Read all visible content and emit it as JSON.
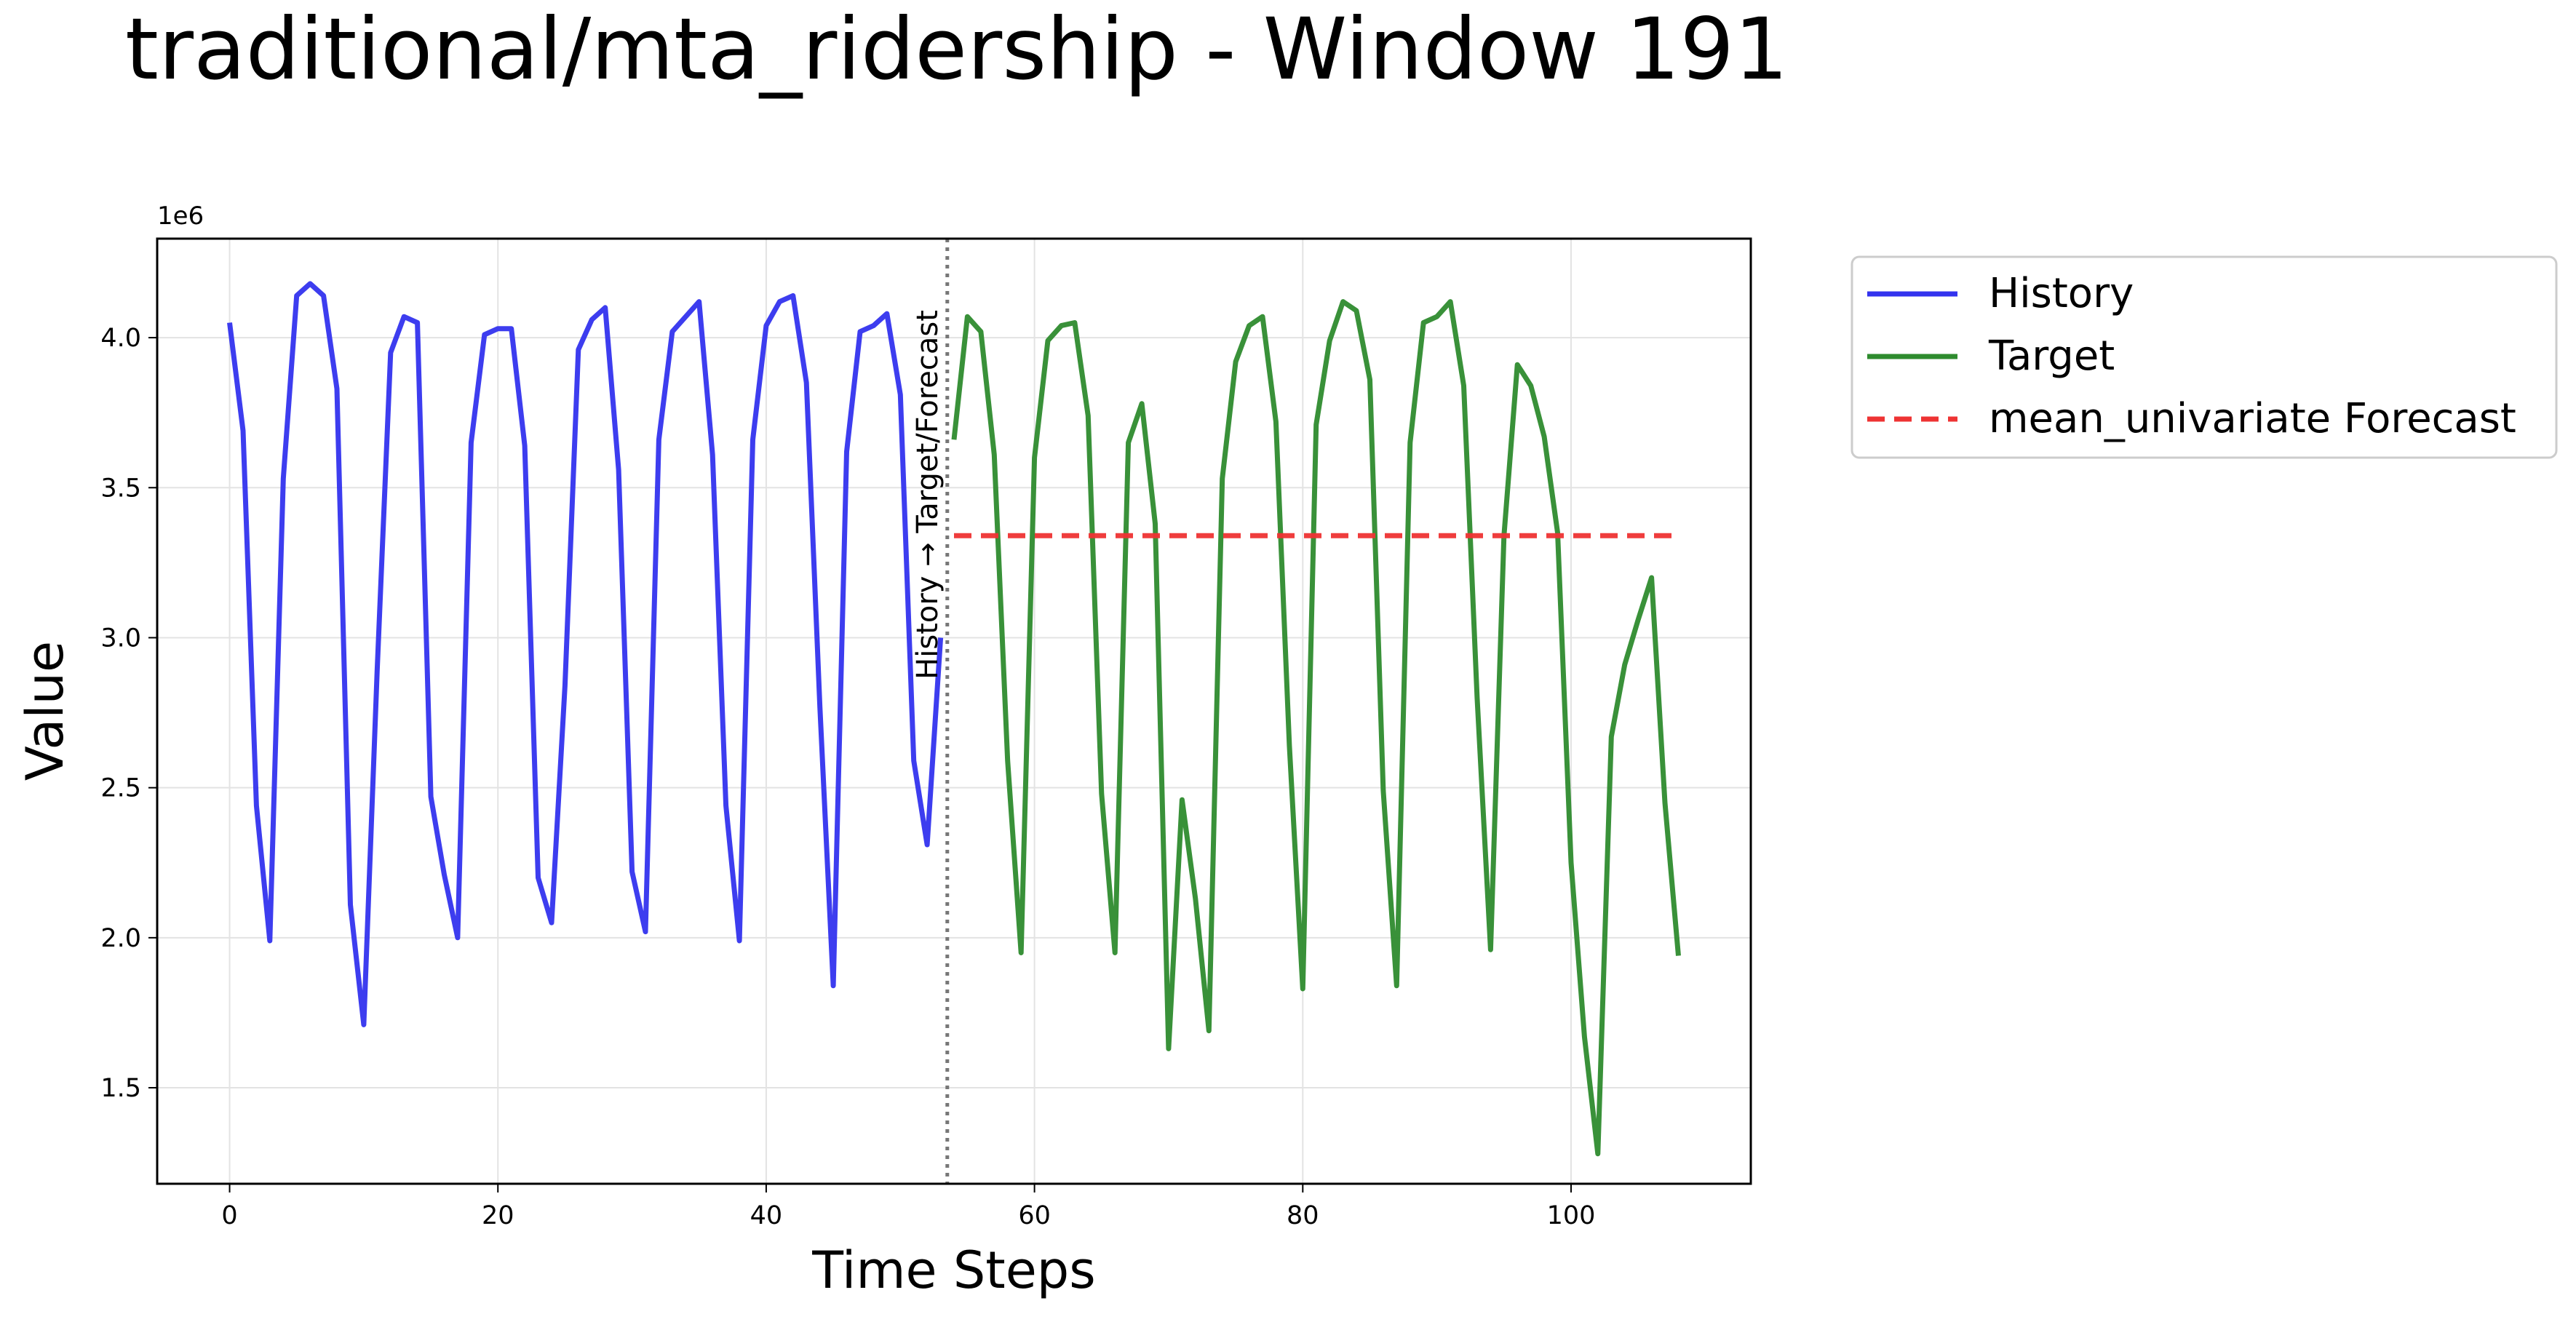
{
  "chart_data": {
    "type": "line",
    "title": "traditional/mta_ridership - Window 191",
    "xlabel": "Time Steps",
    "ylabel": "Value",
    "y_multiplier_label": "1e6",
    "xlim": [
      -5.4,
      113.4
    ],
    "ylim": [
      1.18,
      4.33
    ],
    "x_ticks": [
      0,
      20,
      40,
      60,
      80,
      100
    ],
    "y_ticks": [
      1.5,
      2.0,
      2.5,
      3.0,
      3.5,
      4.0
    ],
    "x_tick_labels": [
      "0",
      "20",
      "40",
      "60",
      "80",
      "100"
    ],
    "y_tick_labels": [
      "1.5",
      "2.0",
      "2.5",
      "3.0",
      "3.5",
      "4.0"
    ],
    "grid": true,
    "legend_position": "outside-top-right",
    "divider": {
      "x": 53.5,
      "label": "History → Target/Forecast",
      "color": "#777777"
    },
    "series": [
      {
        "name": "History",
        "color": "#3333ee",
        "style": "solid",
        "x_start": 0,
        "values": [
          4.05,
          3.69,
          2.44,
          1.99,
          3.53,
          4.14,
          4.18,
          4.14,
          3.83,
          2.11,
          1.71,
          2.89,
          3.95,
          4.07,
          4.05,
          2.47,
          2.21,
          2.0,
          3.65,
          4.01,
          4.03,
          4.03,
          3.64,
          2.2,
          2.05,
          2.84,
          3.96,
          4.06,
          4.1,
          3.56,
          2.22,
          2.02,
          3.66,
          4.02,
          4.07,
          4.12,
          3.61,
          2.44,
          1.99,
          3.66,
          4.04,
          4.12,
          4.14,
          3.85,
          2.77,
          1.84,
          3.62,
          4.02,
          4.04,
          4.08,
          3.81,
          2.59,
          2.31,
          3.0
        ]
      },
      {
        "name": "Target",
        "color": "#2e8b2e",
        "style": "solid",
        "x_start": 54,
        "values": [
          3.66,
          4.07,
          4.02,
          3.61,
          2.59,
          1.95,
          3.6,
          3.99,
          4.04,
          4.05,
          3.74,
          2.48,
          1.95,
          3.65,
          3.78,
          3.38,
          1.63,
          2.46,
          2.13,
          1.69,
          3.53,
          3.92,
          4.04,
          4.07,
          3.72,
          2.64,
          1.83,
          3.71,
          3.99,
          4.12,
          4.09,
          3.86,
          2.49,
          1.84,
          3.65,
          4.05,
          4.07,
          4.12,
          3.84,
          2.8,
          1.96,
          3.34,
          3.91,
          3.84,
          3.67,
          3.35,
          2.25,
          1.67,
          1.28,
          2.67,
          2.91,
          3.06,
          3.2,
          2.45,
          1.94
        ]
      },
      {
        "name": "mean_univariate Forecast",
        "color": "#ee3333",
        "style": "dashed",
        "x": [
          54,
          108
        ],
        "values": [
          3.34,
          3.34
        ]
      }
    ]
  }
}
